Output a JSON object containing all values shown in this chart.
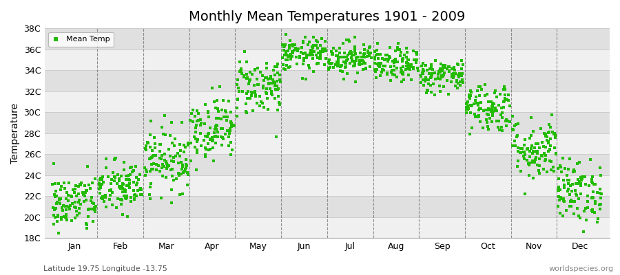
{
  "title": "Monthly Mean Temperatures 1901 - 2009",
  "ylabel": "Temperature",
  "subtitle": "Latitude 19.75 Longitude -13.75",
  "watermark": "worldspecies.org",
  "dot_color": "#22bb00",
  "dot_size": 5,
  "background_color": "#ffffff",
  "plot_bg_color": "#ffffff",
  "stripe_light": "#f0f0f0",
  "stripe_dark": "#e0e0e0",
  "ylim": [
    18,
    38
  ],
  "ytick_labels": [
    "18C",
    "20C",
    "22C",
    "24C",
    "26C",
    "28C",
    "30C",
    "32C",
    "34C",
    "36C",
    "38C"
  ],
  "ytick_values": [
    18,
    20,
    22,
    24,
    26,
    28,
    30,
    32,
    34,
    36,
    38
  ],
  "months": [
    "Jan",
    "Feb",
    "Mar",
    "Apr",
    "May",
    "Jun",
    "Jul",
    "Aug",
    "Sep",
    "Oct",
    "Nov",
    "Dec"
  ],
  "month_means": [
    21.3,
    22.8,
    25.5,
    28.5,
    32.5,
    35.5,
    35.2,
    34.5,
    33.5,
    30.5,
    26.5,
    22.5
  ],
  "month_stds": [
    1.4,
    1.3,
    1.5,
    1.5,
    1.4,
    0.8,
    0.8,
    0.8,
    0.8,
    1.2,
    1.5,
    1.5
  ],
  "n_years": 109,
  "seed": 42,
  "legend_label": "Mean Temp",
  "grid_color": "#cccccc",
  "dashed_color": "#666666",
  "title_fontsize": 14
}
